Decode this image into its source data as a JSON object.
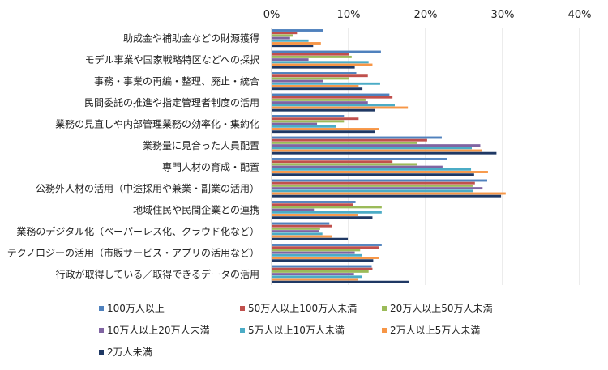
{
  "chart_data": {
    "type": "bar",
    "orientation": "horizontal",
    "title": "",
    "xlabel": "",
    "ylabel": "",
    "xlim": [
      0,
      40
    ],
    "x_ticks": [
      "0%",
      "10%",
      "20%",
      "30%",
      "40%"
    ],
    "grid": true,
    "legend_position": "bottom",
    "categories": [
      "助成金や補助金などの財源獲得",
      "モデル事業や国家戦略特区などへの採択",
      "事務・事業の再編・整理、廃止・統合",
      "民間委託の推進や指定管理者制度の活用",
      "業務の見直しや内部管理業務の効率化・集約化",
      "業務量に見合った人員配置",
      "専門人材の育成・配置",
      "公務外人材の活用（中途採用や兼業・副業の活用）",
      "地域住民や民間企業との連携",
      "業務のデジタル化（ペーパーレス化、クラウド化など）",
      "テクノロジーの活用（市販サービス・アプリの活用など）",
      "行政が取得している／取得できるデータの活用"
    ],
    "series": [
      {
        "name": "100万人以上",
        "color": "#4f81bd",
        "values": [
          6.7,
          14.2,
          11.0,
          15.3,
          9.4,
          22.1,
          22.8,
          28.0,
          10.9,
          7.5,
          14.3,
          13.0
        ]
      },
      {
        "name": "50万人以上100万人未満",
        "color": "#c0504d",
        "values": [
          3.3,
          10.0,
          12.5,
          15.7,
          11.3,
          20.2,
          15.7,
          26.4,
          10.6,
          7.8,
          13.9,
          13.1
        ]
      },
      {
        "name": "20万人以上50万人未満",
        "color": "#9bbb59",
        "values": [
          2.8,
          10.4,
          10.0,
          12.2,
          9.4,
          18.9,
          18.9,
          26.1,
          14.3,
          6.3,
          11.5,
          12.6
        ]
      },
      {
        "name": "10万人以上20万人未満",
        "color": "#8064a2",
        "values": [
          2.4,
          4.8,
          6.7,
          12.5,
          5.9,
          27.1,
          22.2,
          27.4,
          5.5,
          6.2,
          10.8,
          10.7
        ]
      },
      {
        "name": "5万人以上10万人未満",
        "color": "#4bacc6",
        "values": [
          4.8,
          12.6,
          14.1,
          16.0,
          8.4,
          26.0,
          25.9,
          26.2,
          14.3,
          6.6,
          11.7,
          11.7
        ]
      },
      {
        "name": "2万人以上5万人未満",
        "color": "#f79646",
        "values": [
          6.4,
          13.1,
          11.3,
          17.7,
          14.0,
          27.3,
          28.1,
          30.4,
          11.2,
          7.8,
          14.0,
          11.2
        ]
      },
      {
        "name": "2万人未満",
        "color": "#1f3864",
        "values": [
          5.4,
          10.8,
          11.8,
          13.4,
          13.4,
          29.2,
          26.3,
          29.8,
          13.1,
          9.9,
          13.2,
          17.8
        ]
      }
    ]
  }
}
